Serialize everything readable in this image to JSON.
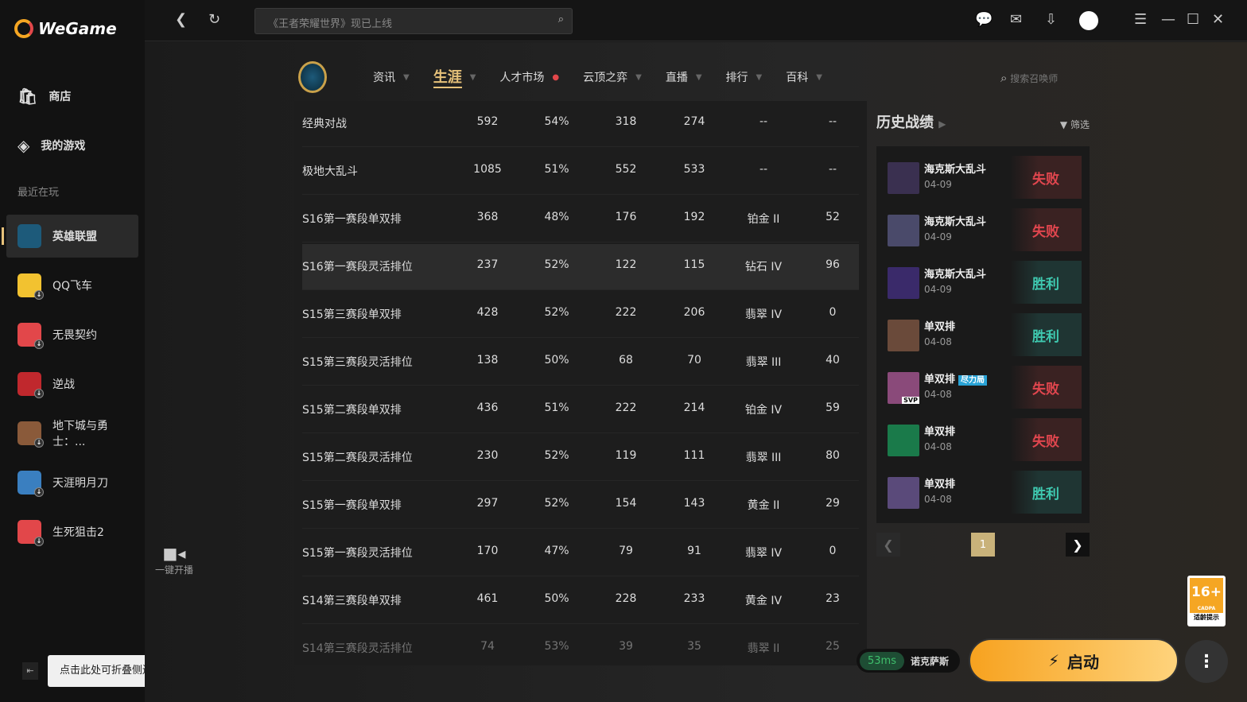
{
  "app": {
    "name": "WeGame"
  },
  "sidebar": {
    "items": [
      {
        "label": "商店",
        "icon": "shop-bag-icon"
      },
      {
        "label": "我的游戏",
        "icon": "gamepad-icon"
      }
    ],
    "recent_label": "最近在玩",
    "games": [
      {
        "label": "英雄联盟",
        "color": "#1d5a7a",
        "active": true
      },
      {
        "label": "QQ飞车",
        "color": "#f2c230"
      },
      {
        "label": "无畏契约",
        "color": "#e2474a"
      },
      {
        "label": "逆战",
        "color": "#c0282d"
      },
      {
        "label": "地下城与勇士：...",
        "color": "#8a5a3a"
      },
      {
        "label": "天涯明月刀",
        "color": "#3a7fc0"
      },
      {
        "label": "生死狙击2",
        "color": "#e2474a"
      }
    ],
    "collapse_tip": "点击此处可折叠侧边栏"
  },
  "topbar": {
    "search_placeholder": "《王者荣耀世界》现已上线"
  },
  "lol_nav": {
    "tabs": [
      {
        "label": "资讯",
        "caret": true
      },
      {
        "label": "生涯",
        "caret": true,
        "active": true
      },
      {
        "label": "人才市场",
        "dot": true
      },
      {
        "label": "云顶之弈",
        "caret": true
      },
      {
        "label": "直播",
        "caret": true
      },
      {
        "label": "排行",
        "caret": true
      },
      {
        "label": "百科",
        "caret": true
      }
    ],
    "summoner_search_placeholder": "搜索召唤师"
  },
  "record_button": "一键开播",
  "table": {
    "rows": [
      [
        "经典对战",
        "592",
        "54%",
        "318",
        "274",
        "--",
        "--"
      ],
      [
        "极地大乱斗",
        "1085",
        "51%",
        "552",
        "533",
        "--",
        "--"
      ],
      [
        "S16第一赛段单双排",
        "368",
        "48%",
        "176",
        "192",
        "铂金 II",
        "52"
      ],
      [
        "S16第一赛段灵活排位",
        "237",
        "52%",
        "122",
        "115",
        "钻石 IV",
        "96"
      ],
      [
        "S15第三赛段单双排",
        "428",
        "52%",
        "222",
        "206",
        "翡翠 IV",
        "0"
      ],
      [
        "S15第三赛段灵活排位",
        "138",
        "50%",
        "68",
        "70",
        "翡翠 III",
        "40"
      ],
      [
        "S15第二赛段单双排",
        "436",
        "51%",
        "222",
        "214",
        "铂金 IV",
        "59"
      ],
      [
        "S15第二赛段灵活排位",
        "230",
        "52%",
        "119",
        "111",
        "翡翠 III",
        "80"
      ],
      [
        "S15第一赛段单双排",
        "297",
        "52%",
        "154",
        "143",
        "黄金 II",
        "29"
      ],
      [
        "S15第一赛段灵活排位",
        "170",
        "47%",
        "79",
        "91",
        "翡翠 IV",
        "0"
      ],
      [
        "S14第三赛段单双排",
        "461",
        "50%",
        "228",
        "233",
        "黄金 IV",
        "23"
      ],
      [
        "S14第三赛段灵活排位",
        "74",
        "53%",
        "39",
        "35",
        "翡翠 II",
        "25"
      ]
    ]
  },
  "history": {
    "title": "历史战绩",
    "filter": "筛选",
    "matches": [
      {
        "mode": "海克斯大乱斗",
        "date": "04-09",
        "result": "失败",
        "win": false,
        "color": "#3a3050"
      },
      {
        "mode": "海克斯大乱斗",
        "date": "04-09",
        "result": "失败",
        "win": false,
        "color": "#4a4a6a"
      },
      {
        "mode": "海克斯大乱斗",
        "date": "04-09",
        "result": "胜利",
        "win": true,
        "color": "#3a2a6a"
      },
      {
        "mode": "单双排",
        "date": "04-08",
        "result": "胜利",
        "win": true,
        "color": "#6a4a3a"
      },
      {
        "mode": "单双排",
        "date": "04-08",
        "result": "失败",
        "win": false,
        "badge": "尽力局",
        "svp": "SVP",
        "color": "#8a4a7a"
      },
      {
        "mode": "单双排",
        "date": "04-08",
        "result": "失败",
        "win": false,
        "color": "#1a7a4a"
      },
      {
        "mode": "单双排",
        "date": "04-08",
        "result": "胜利",
        "win": true,
        "color": "#5a4a7a"
      }
    ],
    "page": "1"
  },
  "footer": {
    "ping": "53ms",
    "server": "诺克萨斯",
    "launch": "启动",
    "age_rating": "16+",
    "age_org": "CADPA",
    "age_tip": "适龄提示"
  }
}
